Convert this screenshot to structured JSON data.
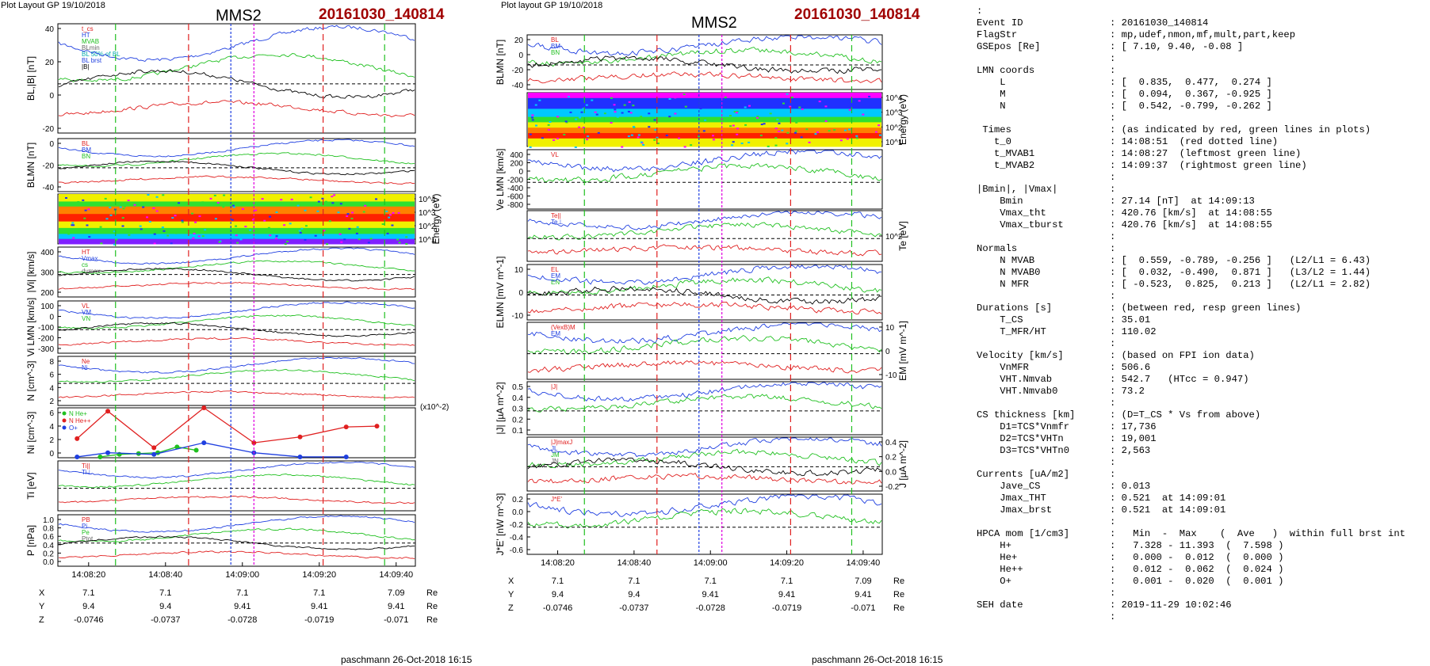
{
  "header": {
    "left_layout": "Plot Layout GP 19/10/2018",
    "mid_layout": "Plot layout GP 19/10/2018",
    "spacecraft": "MMS2",
    "event": "20161030_140814"
  },
  "footer": {
    "signature": "paschmann 26-Oct-2018 16:15"
  },
  "colors": {
    "event_red": "#a00000",
    "blue": "#1f3fe0",
    "green": "#20c020",
    "red": "#e02020",
    "magenta": "#e000e0",
    "black": "#000000"
  },
  "chart_data": [
    {
      "type": "line",
      "time_axis": {
        "ticks": [
          "14:08:20",
          "14:08:40",
          "14:09:00",
          "14:09:20",
          "14:09:40"
        ],
        "range": [
          "14:08:12",
          "14:09:45"
        ]
      },
      "orbit_table": {
        "rows": [
          {
            "label": "X",
            "values": [
              "7.1",
              "7.1",
              "7.1",
              "7.1",
              "7.09"
            ],
            "unit": "Re"
          },
          {
            "label": "Y",
            "values": [
              "9.4",
              "9.4",
              "9.41",
              "9.41",
              "9.41"
            ],
            "unit": "Re"
          },
          {
            "label": "Z",
            "values": [
              "-0.0746",
              "-0.0737",
              "-0.0728",
              "-0.0719",
              "-0.071"
            ],
            "unit": "Re"
          }
        ]
      },
      "panels": [
        {
          "ylabel": "BL,|B| [nT]",
          "yticks": [
            "40",
            "20",
            "0",
            "-20"
          ],
          "ylim": [
            -28,
            45
          ],
          "legend": [
            "t_cs",
            "HT",
            "MVAB",
            "BLmin",
            "BL 50% of BL",
            "BL brst",
            "|B|"
          ]
        },
        {
          "ylabel": "BLMN [nT]",
          "yticks": [
            "0",
            "-20",
            "-40"
          ],
          "ylim": [
            -45,
            18
          ],
          "legend": [
            "BL",
            "BM",
            "BN"
          ]
        },
        {
          "ylabel": "Energy (eV)",
          "yticks": [
            "10^4",
            "10^3",
            "10^2",
            "10^1"
          ],
          "type": "heatmap"
        },
        {
          "ylabel": "|Vi| [km/s]",
          "yticks": [
            "400",
            "300",
            "200"
          ],
          "ylim": [
            150,
            420
          ],
          "legend": [
            "HT",
            "Vmax",
            "cs",
            "dvmax"
          ]
        },
        {
          "ylabel": "Vi LMN [km/s]",
          "yticks": [
            "100",
            "0",
            "-100",
            "-200",
            "-300"
          ],
          "ylim": [
            -350,
            150
          ],
          "legend": [
            "VL",
            "VM",
            "VN"
          ]
        },
        {
          "ylabel": "N [cm^-3]",
          "yticks": [
            "8",
            "6",
            "4",
            "2"
          ],
          "ylim": [
            1.5,
            9
          ],
          "legend": [
            "Ne",
            "Ni"
          ]
        },
        {
          "ylabel": "Ni [cm^-3]",
          "y_unit_note": "(x10^-2)",
          "yticks": [
            "6",
            "4",
            "2",
            "0"
          ],
          "ylim": [
            0,
            6
          ],
          "type": "scatter",
          "series": [
            {
              "name": "N He+",
              "color": "#20c020",
              "x": [
                "14:08:23",
                "14:08:28",
                "14:08:33",
                "14:08:38",
                "14:08:43",
                "14:08:48"
              ],
              "values": [
                0.1,
                0.4,
                0.5,
                0.6,
                1.3,
                0.9
              ]
            },
            {
              "name": "N He++",
              "color": "#e02020",
              "x": [
                "14:08:17",
                "14:08:25",
                "14:08:37",
                "14:08:50",
                "14:09:03",
                "14:09:15",
                "14:09:27",
                "14:09:35"
              ],
              "values": [
                2.3,
                5.6,
                1.2,
                6.0,
                1.8,
                2.5,
                3.7,
                3.8
              ]
            },
            {
              "name": "O+",
              "color": "#1f3fe0",
              "x": [
                "14:08:17",
                "14:08:25",
                "14:08:37",
                "14:08:50",
                "14:09:03",
                "14:09:15",
                "14:09:27"
              ],
              "values": [
                0.1,
                0.6,
                0.4,
                1.8,
                0.6,
                0.1,
                0.1
              ]
            }
          ]
        },
        {
          "ylabel": "Ti [eV]",
          "yticks": [],
          "legend": [
            "Ti||",
            "Ti⊥"
          ]
        },
        {
          "ylabel": "P [nPa]",
          "yticks": [
            "1.0",
            "0.8",
            "0.6",
            "0.4",
            "0.2",
            "0.0"
          ],
          "ylim": [
            0,
            1
          ],
          "legend": [
            "PB",
            "Pi",
            "Pe",
            "Ptot"
          ]
        }
      ]
    },
    {
      "type": "line",
      "time_axis": {
        "ticks": [
          "14:08:20",
          "14:08:40",
          "14:09:00",
          "14:09:20",
          "14:09:40"
        ],
        "range": [
          "14:08:12",
          "14:09:45"
        ]
      },
      "orbit_table": {
        "rows": [
          {
            "label": "X",
            "values": [
              "7.1",
              "7.1",
              "7.1",
              "7.1",
              "7.09"
            ],
            "unit": "Re"
          },
          {
            "label": "Y",
            "values": [
              "9.4",
              "9.4",
              "9.41",
              "9.41",
              "9.41"
            ],
            "unit": "Re"
          },
          {
            "label": "Z",
            "values": [
              "-0.0746",
              "-0.0737",
              "-0.0728",
              "-0.0719",
              "-0.071"
            ],
            "unit": "Re"
          }
        ]
      },
      "panels": [
        {
          "ylabel": "BLMN [nT]",
          "yticks": [
            "20",
            "0",
            "-20",
            "-40"
          ],
          "ylim": [
            -45,
            28
          ],
          "legend": [
            "BL",
            "BM",
            "BN"
          ]
        },
        {
          "ylabel": "Energy (eV)",
          "yticks": [
            "10^4",
            "10^3",
            "10^2",
            "10^1"
          ],
          "type": "heatmap"
        },
        {
          "ylabel": "Ve LMN [km/s]",
          "yticks": [
            "400",
            "200",
            "0",
            "-200",
            "-400",
            "-600",
            "-800"
          ],
          "ylim": [
            -900,
            450
          ],
          "legend": [
            "VL"
          ]
        },
        {
          "ylabel": "Te [eV]",
          "yticks": [
            "10^2"
          ],
          "legend": [
            "Te||",
            "Te⊥"
          ]
        },
        {
          "ylabel": "ELMN [mV m^-1]",
          "yticks": [
            "10",
            "0",
            "-10"
          ],
          "ylim": [
            -18,
            15
          ],
          "legend": [
            "EL",
            "EM",
            "EN"
          ]
        },
        {
          "ylabel": "EM [mV m^-1]",
          "yticks": [
            "10",
            "0",
            "-10"
          ],
          "ylim": [
            -15,
            15
          ],
          "legend": [
            "(VexB)M",
            "EM"
          ]
        },
        {
          "ylabel": "|J| [µA m^-2]",
          "yticks": [
            "0.5",
            "0.4",
            "0.3",
            "0.2",
            "0.1"
          ],
          "ylim": [
            0,
            0.52
          ],
          "legend": [
            "|J|"
          ]
        },
        {
          "ylabel": "J [µA m^-2]",
          "yticks": [
            "0.4",
            "0.2",
            "0.0",
            "-0.2"
          ],
          "ylim": [
            -0.32,
            0.45
          ],
          "legend": [
            "|J|maxJ",
            "JL",
            "JM",
            "JN"
          ]
        },
        {
          "ylabel": "J*E' [nW m^-3]",
          "yticks": [
            "0.2",
            "0.0",
            "-0.2",
            "-0.4",
            "-0.6"
          ],
          "ylim": [
            -0.65,
            0.3
          ],
          "legend": [
            "J*E'"
          ]
        }
      ]
    }
  ],
  "info": {
    "rows": [
      {
        "k": ":",
        "v": ""
      },
      {
        "k": "Event ID",
        "v": ": 20161030_140814"
      },
      {
        "k": "FlagStr",
        "v": ": mp,udef,nmon,mf,mult,part,keep"
      },
      {
        "k": "GSEpos [Re]",
        "v": ": [ 7.10, 9.40, -0.08 ]"
      },
      {
        "k": "",
        "v": ":"
      },
      {
        "k": "LMN coords",
        "v": ":"
      },
      {
        "k": "    L",
        "v": ": [  0.835,  0.477,  0.274 ]"
      },
      {
        "k": "    M",
        "v": ": [  0.094,  0.367, -0.925 ]"
      },
      {
        "k": "    N",
        "v": ": [  0.542, -0.799, -0.262 ]"
      },
      {
        "k": "",
        "v": ":"
      },
      {
        "k": " Times",
        "v": ": (as indicated by red, green lines in plots)"
      },
      {
        "k": "   t_0",
        "v": ": 14:08:51  (red dotted line)"
      },
      {
        "k": "   t_MVAB1",
        "v": ": 14:08:27  (leftmost green line)"
      },
      {
        "k": "   t_MVAB2",
        "v": ": 14:09:37  (rightmost green line)"
      },
      {
        "k": "",
        "v": ":"
      },
      {
        "k": "|Bmin|, |Vmax|",
        "v": ":"
      },
      {
        "k": "    Bmin",
        "v": ": 27.14 [nT]  at 14:09:13"
      },
      {
        "k": "    Vmax_tht",
        "v": ": 420.76 [km/s]  at 14:08:55"
      },
      {
        "k": "    Vmax_tburst",
        "v": ": 420.76 [km/s]  at 14:08:55"
      },
      {
        "k": "",
        "v": ":"
      },
      {
        "k": "Normals",
        "v": ":"
      },
      {
        "k": "    N MVAB",
        "v": ": [  0.559, -0.789, -0.256 ]   (L2/L1 = 6.43)"
      },
      {
        "k": "    N MVAB0",
        "v": ": [  0.032, -0.490,  0.871 ]   (L3/L2 = 1.44)"
      },
      {
        "k": "    N MFR",
        "v": ": [ -0.523,  0.825,  0.213 ]   (L2/L1 = 2.82)"
      },
      {
        "k": "",
        "v": ":"
      },
      {
        "k": "Durations [s]",
        "v": ": (between red, resp green lines)"
      },
      {
        "k": "    T_CS",
        "v": ": 35.01"
      },
      {
        "k": "    T_MFR/HT",
        "v": ": 110.02"
      },
      {
        "k": "",
        "v": ":"
      },
      {
        "k": "Velocity [km/s]",
        "v": ": (based on FPI ion data)"
      },
      {
        "k": "    VnMFR",
        "v": ": 506.6"
      },
      {
        "k": "    VHT.Nmvab",
        "v": ": 542.7   (HTcc = 0.947)"
      },
      {
        "k": "    VHT.Nmvab0",
        "v": ": 73.2"
      },
      {
        "k": "",
        "v": ":"
      },
      {
        "k": "CS thickness [km]",
        "v": ": (D=T_CS * Vs from above)"
      },
      {
        "k": "    D1=TCS*Vnmfr",
        "v": ": 17,736"
      },
      {
        "k": "    D2=TCS*VHTn",
        "v": ": 19,001"
      },
      {
        "k": "    D3=TCS*VHTn0",
        "v": ": 2,563"
      },
      {
        "k": "",
        "v": ":"
      },
      {
        "k": "Currents [uA/m2]",
        "v": ":"
      },
      {
        "k": "    Jave_CS",
        "v": ": 0.013"
      },
      {
        "k": "    Jmax_THT",
        "v": ": 0.521  at 14:09:01"
      },
      {
        "k": "    Jmax_brst",
        "v": ": 0.521  at 14:09:01"
      },
      {
        "k": "",
        "v": ":"
      },
      {
        "k": "HPCA mom [1/cm3]",
        "v": ":   Min  -  Max    (  Ave   )  within full brst int"
      },
      {
        "k": "    H+",
        "v": ":   7.328 - 11.393  (  7.598 )"
      },
      {
        "k": "    He+",
        "v": ":   0.000 -  0.012  (  0.000 )"
      },
      {
        "k": "    He++",
        "v": ":   0.012 -  0.062  (  0.024 )"
      },
      {
        "k": "    O+",
        "v": ":   0.001 -  0.020  (  0.001 )"
      },
      {
        "k": "",
        "v": ":"
      },
      {
        "k": "SEH date",
        "v": ": 2019-11-29 10:02:46"
      },
      {
        "k": "",
        "v": ":"
      }
    ]
  }
}
